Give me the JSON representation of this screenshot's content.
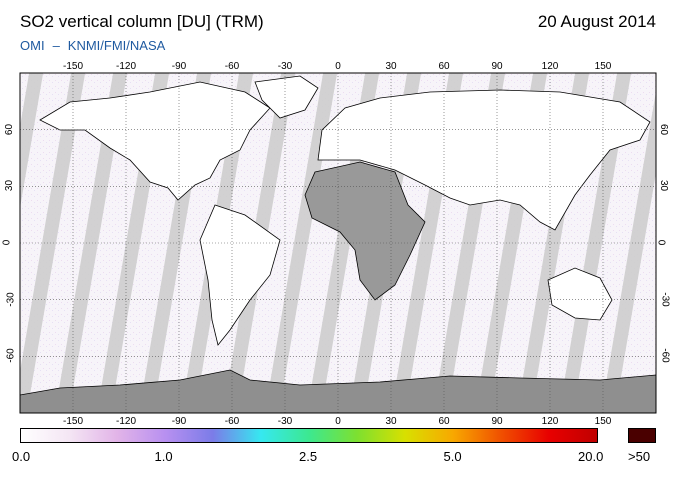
{
  "header": {
    "title": "SO2 vertical column [DU] (TRM)",
    "date": "20 August 2014",
    "credit_left": "OMI",
    "credit_sep": "–",
    "credit_right": "KNMI/FMI/NASA"
  },
  "map": {
    "projection": "equirectangular",
    "lon_range": [
      -180,
      180
    ],
    "lat_range": [
      -90,
      90
    ],
    "lon_ticks": [
      "-150",
      "-120",
      "-90",
      "-60",
      "-30",
      "0",
      "30",
      "60",
      "90",
      "120",
      "150"
    ],
    "lat_ticks": [
      "60",
      "30",
      "0",
      "-30",
      "-60"
    ],
    "colors": {
      "background": "#f6f4f8",
      "no_data_swath": "#cdcdcd",
      "land_gap": "#999999",
      "antarctica": "#8f8f8f",
      "coastline": "#000000",
      "grid": "#555555"
    }
  },
  "colorbar": {
    "labels": [
      "0.0",
      "1.0",
      "2.5",
      "5.0",
      "20.0"
    ],
    "overflow_label": ">50",
    "overflow_color": "#4a0000",
    "gradient": [
      "#ffffff",
      "#f4e6f4",
      "#e2b4e8",
      "#b890f0",
      "#7b7ce8",
      "#36e8f0",
      "#3ce890",
      "#7de030",
      "#d8e000",
      "#f8a800",
      "#f05000",
      "#e80000",
      "#c00000"
    ]
  }
}
